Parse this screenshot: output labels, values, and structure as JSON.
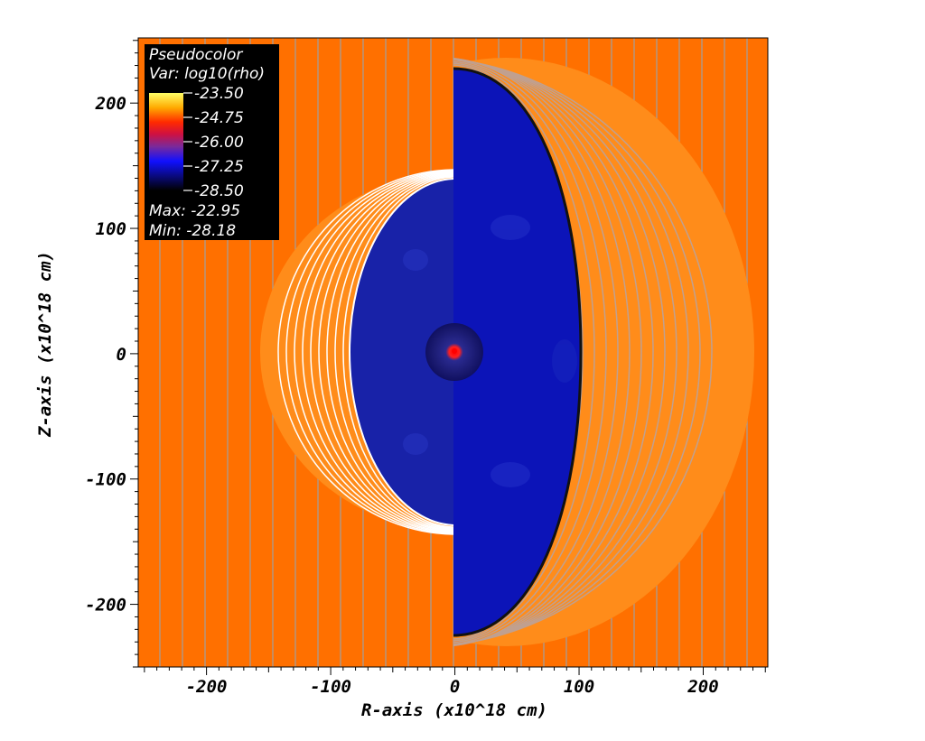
{
  "chart_data": {
    "type": "heatmap",
    "xlabel": "R-axis (x10^18 cm)",
    "ylabel": "Z-axis (x10^18 cm)",
    "xlim": [
      -255,
      252
    ],
    "ylim": [
      -250,
      252
    ],
    "x_ticks": [
      -200,
      -100,
      0,
      100,
      200
    ],
    "y_ticks": [
      200,
      100,
      0,
      -100,
      -200
    ],
    "x_tick_labels": [
      "-200",
      "-100",
      "0",
      "100",
      "200"
    ],
    "y_tick_labels": [
      "200",
      "100",
      "0",
      "-100",
      "-200"
    ],
    "legend": {
      "title": "Pseudocolor",
      "variable": "Var: log10(rho)",
      "levels": [
        "-23.50",
        "-24.75",
        "-26.00",
        "-27.25",
        "-28.50"
      ],
      "max_label": "Max: -22.95",
      "min_label": "Min: -28.18",
      "placement": "top-left",
      "colormap": [
        "#ffff66",
        "#ffaa00",
        "#ff2a00",
        "#d01040",
        "#7a2a9a",
        "#1010ff",
        "#0a0a80",
        "#000000"
      ]
    },
    "regions": {
      "background_value": -23.9,
      "left_cavity": {
        "r_max": -82,
        "z_half_height": 138,
        "shell_outer_r": -155,
        "shell_z_half": 143
      },
      "right_cavity": {
        "r_max": 103,
        "z_half_height": 226,
        "shell_outer_r": 240,
        "shell_z_half": 236
      },
      "central_source": {
        "r": 0,
        "z": 0,
        "radius": 23
      }
    },
    "colors": {
      "background": "#ff7000",
      "shell": "#ff8c1a",
      "cavity_left": "#1822a8",
      "cavity_right": "#0c14b8",
      "grid_line": "#a0a0a0",
      "shell_line_left": "#ffffff"
    }
  }
}
